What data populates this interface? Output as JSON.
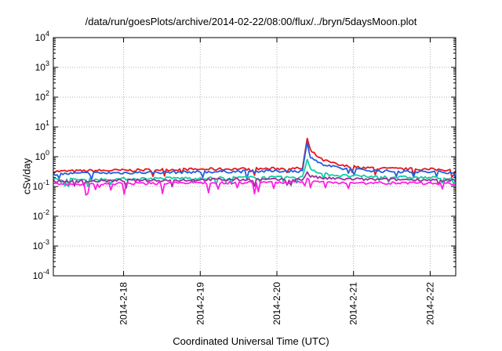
{
  "chart_data": {
    "type": "line",
    "title": "/data/run/goesPlots/archive/2014-02-22/08:00/flux/../bryn/5daysMoon.plot",
    "xlabel": "Coordinated Universal Time (UTC)",
    "ylabel": "cSv/day",
    "yscale": "log",
    "ylim": [
      0.0001,
      10000
    ],
    "yticks": [
      {
        "base": "10",
        "exp": "-4",
        "value": 0.0001
      },
      {
        "base": "10",
        "exp": "-3",
        "value": 0.001
      },
      {
        "base": "10",
        "exp": "-2",
        "value": 0.01
      },
      {
        "base": "10",
        "exp": "-1",
        "value": 0.1
      },
      {
        "base": "10",
        "exp": "0",
        "value": 1
      },
      {
        "base": "10",
        "exp": "1",
        "value": 10
      },
      {
        "base": "10",
        "exp": "2",
        "value": 100
      },
      {
        "base": "10",
        "exp": "3",
        "value": 1000
      },
      {
        "base": "10",
        "exp": "4",
        "value": 10000
      }
    ],
    "xlim": [
      "2014-02-17 02:00",
      "2014-02-22 08:00"
    ],
    "xticks": [
      {
        "label": "2014-2-18",
        "value": "2014-02-18 00:00"
      },
      {
        "label": "2014-2-19",
        "value": "2014-02-19 00:00"
      },
      {
        "label": "2014-2-20",
        "value": "2014-02-20 00:00"
      },
      {
        "label": "2014-2-21",
        "value": "2014-02-21 00:00"
      },
      {
        "label": "2014-2-22",
        "value": "2014-02-22 00:00"
      }
    ],
    "grid": true,
    "legend": "none",
    "x": [
      "2014-02-17 02:00",
      "2014-02-17 14:00",
      "2014-02-18 02:00",
      "2014-02-18 14:00",
      "2014-02-19 02:00",
      "2014-02-19 14:00",
      "2014-02-20 02:00",
      "2014-02-20 08:00",
      "2014-02-20 09:30",
      "2014-02-20 10:30",
      "2014-02-20 14:00",
      "2014-02-20 20:00",
      "2014-02-21 08:00",
      "2014-02-21 20:00",
      "2014-02-22 08:00"
    ],
    "series": [
      {
        "color": "#e8161b",
        "values": [
          0.32,
          0.34,
          0.35,
          0.37,
          0.38,
          0.39,
          0.4,
          0.4,
          4.0,
          1.6,
          0.8,
          0.5,
          0.4,
          0.38,
          0.36
        ]
      },
      {
        "color": "#1f5fe0",
        "values": [
          0.26,
          0.28,
          0.29,
          0.3,
          0.31,
          0.32,
          0.33,
          0.33,
          3.0,
          1.0,
          0.55,
          0.4,
          0.33,
          0.31,
          0.3
        ]
      },
      {
        "color": "#10cfa0",
        "values": [
          0.17,
          0.17,
          0.18,
          0.19,
          0.19,
          0.2,
          0.2,
          0.2,
          0.85,
          0.4,
          0.27,
          0.23,
          0.21,
          0.2,
          0.19
        ]
      },
      {
        "color": "#9a2f9a",
        "values": [
          0.15,
          0.15,
          0.16,
          0.16,
          0.17,
          0.17,
          0.17,
          0.17,
          0.3,
          0.22,
          0.19,
          0.18,
          0.17,
          0.17,
          0.16
        ]
      },
      {
        "color": "#ff1fe6",
        "values": [
          0.12,
          0.12,
          0.125,
          0.13,
          0.13,
          0.135,
          0.135,
          0.135,
          0.18,
          0.15,
          0.14,
          0.135,
          0.13,
          0.13,
          0.12
        ]
      }
    ]
  }
}
